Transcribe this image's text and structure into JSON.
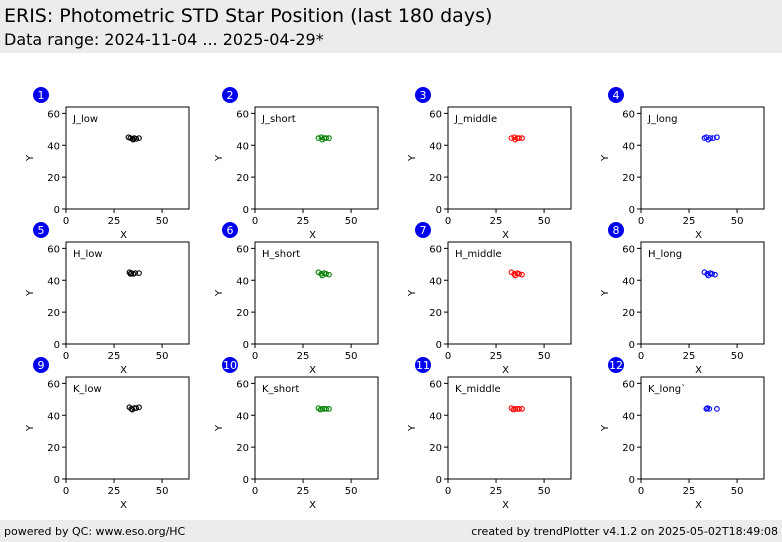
{
  "header": {
    "title": "ERIS: Photometric STD Star Position (last 180 days)",
    "subtitle": "Data range: 2024-11-04 ... 2025-04-29*"
  },
  "footer": {
    "left": "powered by QC: www.eso.org/HC",
    "right": "created by trendPlotter v4.1.2 on 2025-05-02T18:49:08"
  },
  "colors": {
    "badge": "#0000ee",
    "black": "#000000",
    "green": "#008000",
    "red": "#ff0000",
    "blue": "#0000ff"
  },
  "chart_data": [
    {
      "type": "scatter",
      "panel": "1",
      "name": "J_low",
      "color": "black",
      "xlabel": "X",
      "ylabel": "Y",
      "xlim": [
        0,
        64
      ],
      "ylim": [
        0,
        64
      ],
      "xticks": [
        0,
        25,
        50
      ],
      "yticks": [
        0,
        20,
        40,
        60
      ],
      "points": [
        [
          32.5,
          45
        ],
        [
          33.5,
          44.5
        ],
        [
          34.5,
          44
        ],
        [
          35,
          43.5
        ],
        [
          35.5,
          44.5
        ],
        [
          36.5,
          44
        ],
        [
          38,
          44.5
        ]
      ]
    },
    {
      "type": "scatter",
      "panel": "2",
      "name": "J_short",
      "color": "green",
      "xlabel": "X",
      "ylabel": "Y",
      "xlim": [
        0,
        64
      ],
      "ylim": [
        0,
        64
      ],
      "xticks": [
        0,
        25,
        50
      ],
      "yticks": [
        0,
        20,
        40,
        60
      ],
      "points": [
        [
          33,
          44.5
        ],
        [
          34.5,
          45
        ],
        [
          35,
          43.5
        ],
        [
          36,
          44.5
        ],
        [
          37,
          44.5
        ],
        [
          38.5,
          44.5
        ]
      ]
    },
    {
      "type": "scatter",
      "panel": "3",
      "name": "J_middle",
      "color": "red",
      "xlabel": "X",
      "ylabel": "Y",
      "xlim": [
        0,
        64
      ],
      "ylim": [
        0,
        64
      ],
      "xticks": [
        0,
        25,
        50
      ],
      "yticks": [
        0,
        20,
        40,
        60
      ],
      "points": [
        [
          33,
          44.5
        ],
        [
          34.5,
          45
        ],
        [
          35,
          43.5
        ],
        [
          36,
          44.5
        ],
        [
          37,
          44.5
        ],
        [
          38.5,
          44.5
        ]
      ]
    },
    {
      "type": "scatter",
      "panel": "4",
      "name": "J_long",
      "color": "blue",
      "xlabel": "X",
      "ylabel": "Y",
      "xlim": [
        0,
        64
      ],
      "ylim": [
        0,
        64
      ],
      "xticks": [
        0,
        25,
        50
      ],
      "yticks": [
        0,
        20,
        40,
        60
      ],
      "points": [
        [
          33,
          44.5
        ],
        [
          34,
          45
        ],
        [
          35,
          43.5
        ],
        [
          36,
          44.5
        ],
        [
          37.5,
          44.5
        ],
        [
          39.5,
          45
        ]
      ]
    },
    {
      "type": "scatter",
      "panel": "5",
      "name": "H_low",
      "color": "black",
      "xlabel": "X",
      "ylabel": "Y",
      "xlim": [
        0,
        64
      ],
      "ylim": [
        0,
        64
      ],
      "xticks": [
        0,
        25,
        50
      ],
      "yticks": [
        0,
        20,
        40,
        60
      ],
      "points": [
        [
          33,
          45
        ],
        [
          33.5,
          44
        ],
        [
          34,
          44.5
        ],
        [
          35,
          44
        ],
        [
          36,
          44.5
        ],
        [
          38,
          44.5
        ]
      ]
    },
    {
      "type": "scatter",
      "panel": "6",
      "name": "H_short",
      "color": "green",
      "xlabel": "X",
      "ylabel": "Y",
      "xlim": [
        0,
        64
      ],
      "ylim": [
        0,
        64
      ],
      "xticks": [
        0,
        25,
        50
      ],
      "yticks": [
        0,
        20,
        40,
        60
      ],
      "points": [
        [
          33,
          45
        ],
        [
          34.5,
          44
        ],
        [
          35,
          43
        ],
        [
          36,
          44.5
        ],
        [
          37,
          44
        ],
        [
          38.5,
          43.5
        ]
      ]
    },
    {
      "type": "scatter",
      "panel": "7",
      "name": "H_middle",
      "color": "red",
      "xlabel": "X",
      "ylabel": "Y",
      "xlim": [
        0,
        64
      ],
      "ylim": [
        0,
        64
      ],
      "xticks": [
        0,
        25,
        50
      ],
      "yticks": [
        0,
        20,
        40,
        60
      ],
      "points": [
        [
          33,
          45
        ],
        [
          34.5,
          44
        ],
        [
          35,
          43
        ],
        [
          36,
          44.5
        ],
        [
          37,
          44
        ],
        [
          38.5,
          43.5
        ]
      ]
    },
    {
      "type": "scatter",
      "panel": "8",
      "name": "H_long",
      "color": "blue",
      "xlabel": "X",
      "ylabel": "Y",
      "xlim": [
        0,
        64
      ],
      "ylim": [
        0,
        64
      ],
      "xticks": [
        0,
        25,
        50
      ],
      "yticks": [
        0,
        20,
        40,
        60
      ],
      "points": [
        [
          33,
          45
        ],
        [
          34.5,
          44
        ],
        [
          35,
          43
        ],
        [
          36,
          44.5
        ],
        [
          37,
          44
        ],
        [
          38.5,
          43.5
        ]
      ]
    },
    {
      "type": "scatter",
      "panel": "9",
      "name": "K_low",
      "color": "black",
      "xlabel": "X",
      "ylabel": "Y",
      "xlim": [
        0,
        64
      ],
      "ylim": [
        0,
        64
      ],
      "xticks": [
        0,
        25,
        50
      ],
      "yticks": [
        0,
        20,
        40,
        60
      ],
      "points": [
        [
          33,
          45
        ],
        [
          34,
          44
        ],
        [
          34.5,
          43.5
        ],
        [
          35.5,
          44.5
        ],
        [
          36.5,
          44.5
        ],
        [
          38,
          45
        ]
      ]
    },
    {
      "type": "scatter",
      "panel": "10",
      "name": "K_short",
      "color": "green",
      "xlabel": "X",
      "ylabel": "Y",
      "xlim": [
        0,
        64
      ],
      "ylim": [
        0,
        64
      ],
      "xticks": [
        0,
        25,
        50
      ],
      "yticks": [
        0,
        20,
        40,
        60
      ],
      "points": [
        [
          33,
          44.5
        ],
        [
          34,
          43.5
        ],
        [
          35,
          44
        ],
        [
          36,
          44
        ],
        [
          37,
          44
        ],
        [
          38.5,
          44
        ]
      ]
    },
    {
      "type": "scatter",
      "panel": "11",
      "name": "K_middle",
      "color": "red",
      "xlabel": "X",
      "ylabel": "Y",
      "xlim": [
        0,
        64
      ],
      "ylim": [
        0,
        64
      ],
      "xticks": [
        0,
        25,
        50
      ],
      "yticks": [
        0,
        20,
        40,
        60
      ],
      "points": [
        [
          33,
          44.5
        ],
        [
          34,
          43.5
        ],
        [
          35,
          44
        ],
        [
          36,
          44
        ],
        [
          37,
          44
        ],
        [
          38.5,
          44
        ]
      ]
    },
    {
      "type": "scatter",
      "panel": "12",
      "name": "K_long`",
      "color": "blue",
      "xlabel": "X",
      "ylabel": "Y",
      "xlim": [
        0,
        64
      ],
      "ylim": [
        0,
        64
      ],
      "xticks": [
        0,
        25,
        50
      ],
      "yticks": [
        0,
        20,
        40,
        60
      ],
      "points": [
        [
          34,
          44
        ],
        [
          34.5,
          44.5
        ],
        [
          35.5,
          44
        ],
        [
          39.5,
          44
        ]
      ]
    }
  ]
}
